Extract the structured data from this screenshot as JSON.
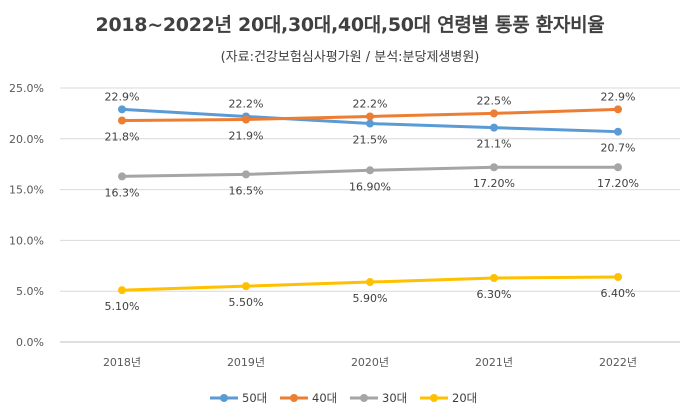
{
  "chart_data": {
    "type": "line",
    "title": "2018~2022년 20대,30대,40대,50대 연령별 통풍 환자비율",
    "subtitle": "(자료:건강보험심사평가원 / 분석:분당제생병원)",
    "categories": [
      "2018년",
      "2019년",
      "2020년",
      "2021년",
      "2022년"
    ],
    "y_ticks": [
      "0.0%",
      "5.0%",
      "10.0%",
      "15.0%",
      "20.0%",
      "25.0%"
    ],
    "ylim": [
      0,
      25
    ],
    "grid": true,
    "legend_position": "bottom",
    "series": [
      {
        "name": "50대",
        "color": "#5B9BD5",
        "values": [
          22.9,
          22.2,
          21.5,
          21.1,
          20.7
        ],
        "labels": [
          "22.9%",
          "22.2%",
          "21.5%",
          "21.1%",
          "20.7%"
        ],
        "label_pos": [
          "above",
          "above",
          "below",
          "below",
          "below"
        ]
      },
      {
        "name": "40대",
        "color": "#ED7D31",
        "values": [
          21.8,
          21.9,
          22.2,
          22.5,
          22.9
        ],
        "labels": [
          "21.8%",
          "21.9%",
          "22.2%",
          "22.5%",
          "22.9%"
        ],
        "label_pos": [
          "below",
          "below",
          "above",
          "above",
          "above"
        ]
      },
      {
        "name": "30대",
        "color": "#A5A5A5",
        "values": [
          16.3,
          16.5,
          16.9,
          17.2,
          17.2
        ],
        "labels": [
          "16.3%",
          "16.5%",
          "16.90%",
          "17.20%",
          "17.20%"
        ],
        "label_pos": [
          "below",
          "below",
          "below",
          "below",
          "below"
        ]
      },
      {
        "name": "20대",
        "color": "#FFC000",
        "values": [
          5.1,
          5.5,
          5.9,
          6.3,
          6.4
        ],
        "labels": [
          "5.10%",
          "5.50%",
          "5.90%",
          "6.30%",
          "6.40%"
        ],
        "label_pos": [
          "below",
          "below",
          "below",
          "below",
          "below"
        ]
      }
    ]
  }
}
